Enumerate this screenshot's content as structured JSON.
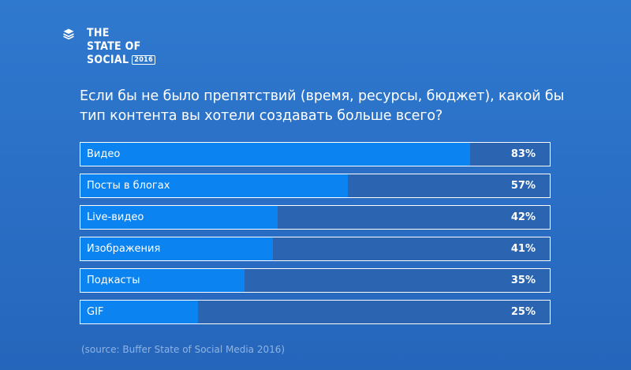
{
  "logo": {
    "line1": "THE",
    "line2": "STATE OF",
    "line3": "SOCIAL",
    "year": "2016",
    "icon": "buffer-stack-icon"
  },
  "chart_data": {
    "type": "bar",
    "orientation": "horizontal",
    "title": "Если бы не было препятствий (время, ресурсы, бюджет), какой бы тип контента вы хотели создавать больше всего?",
    "categories": [
      "Видео",
      "Посты в блогах",
      "Live-видео",
      "Изображения",
      "Подкасты",
      "GIF"
    ],
    "values": [
      83,
      57,
      42,
      41,
      35,
      25
    ],
    "value_labels": [
      "83%",
      "57%",
      "42%",
      "41%",
      "35%",
      "25%"
    ],
    "unit": "%",
    "xlim": [
      0,
      100
    ],
    "grid": false,
    "legend": "none",
    "colors": {
      "fill": "#0b83f0",
      "track": "#2b64b1",
      "background": "#2a6fc6"
    }
  },
  "source": "(source: Buffer State of Social Media 2016)"
}
